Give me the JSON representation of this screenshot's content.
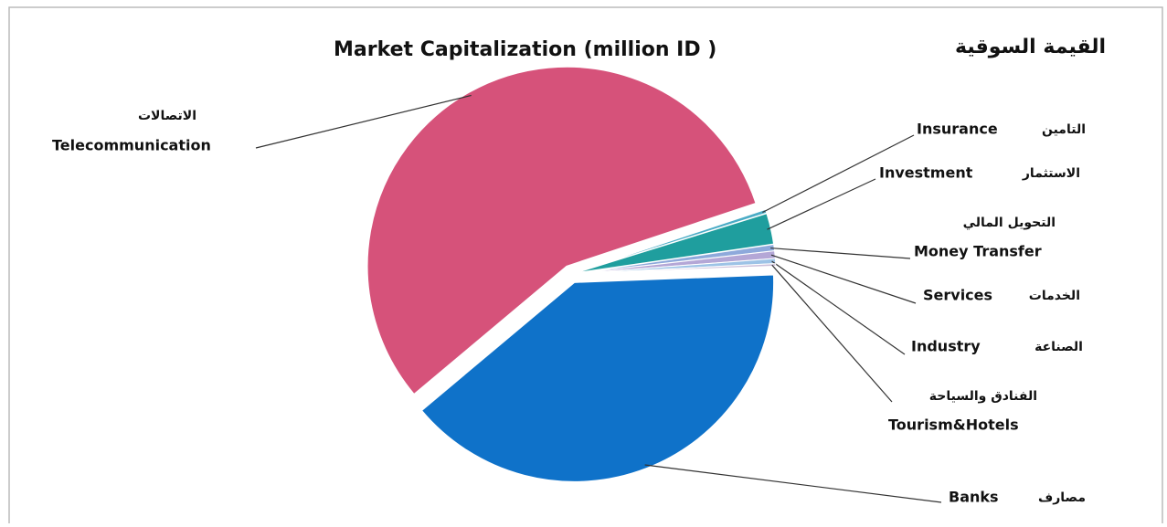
{
  "chart_data": {
    "type": "pie",
    "title": "Market Capitalization (million ID )",
    "title_ar": "القيمة السوقية",
    "categories": [
      "Telecommunication",
      "Insurance",
      "Investment",
      "Money Transfer",
      "Services",
      "Industry",
      "Tourism&Hotels",
      "Banks"
    ],
    "categories_ar": [
      "الاتصالات",
      "التامين",
      "الاستثمار",
      "التحويل المالي",
      "الخدمات",
      "الصناعة",
      "الفنادق والسياحة",
      "مصارف"
    ],
    "values": [
      56,
      0.3,
      2.5,
      0.5,
      0.6,
      0.4,
      0.2,
      39.5
    ],
    "colors": [
      "#d6527a",
      "#4bacc6",
      "#1f9e9e",
      "#8ea9db",
      "#b4a7d6",
      "#9dc3e6",
      "#ccc0da",
      "#0f72c9"
    ]
  }
}
